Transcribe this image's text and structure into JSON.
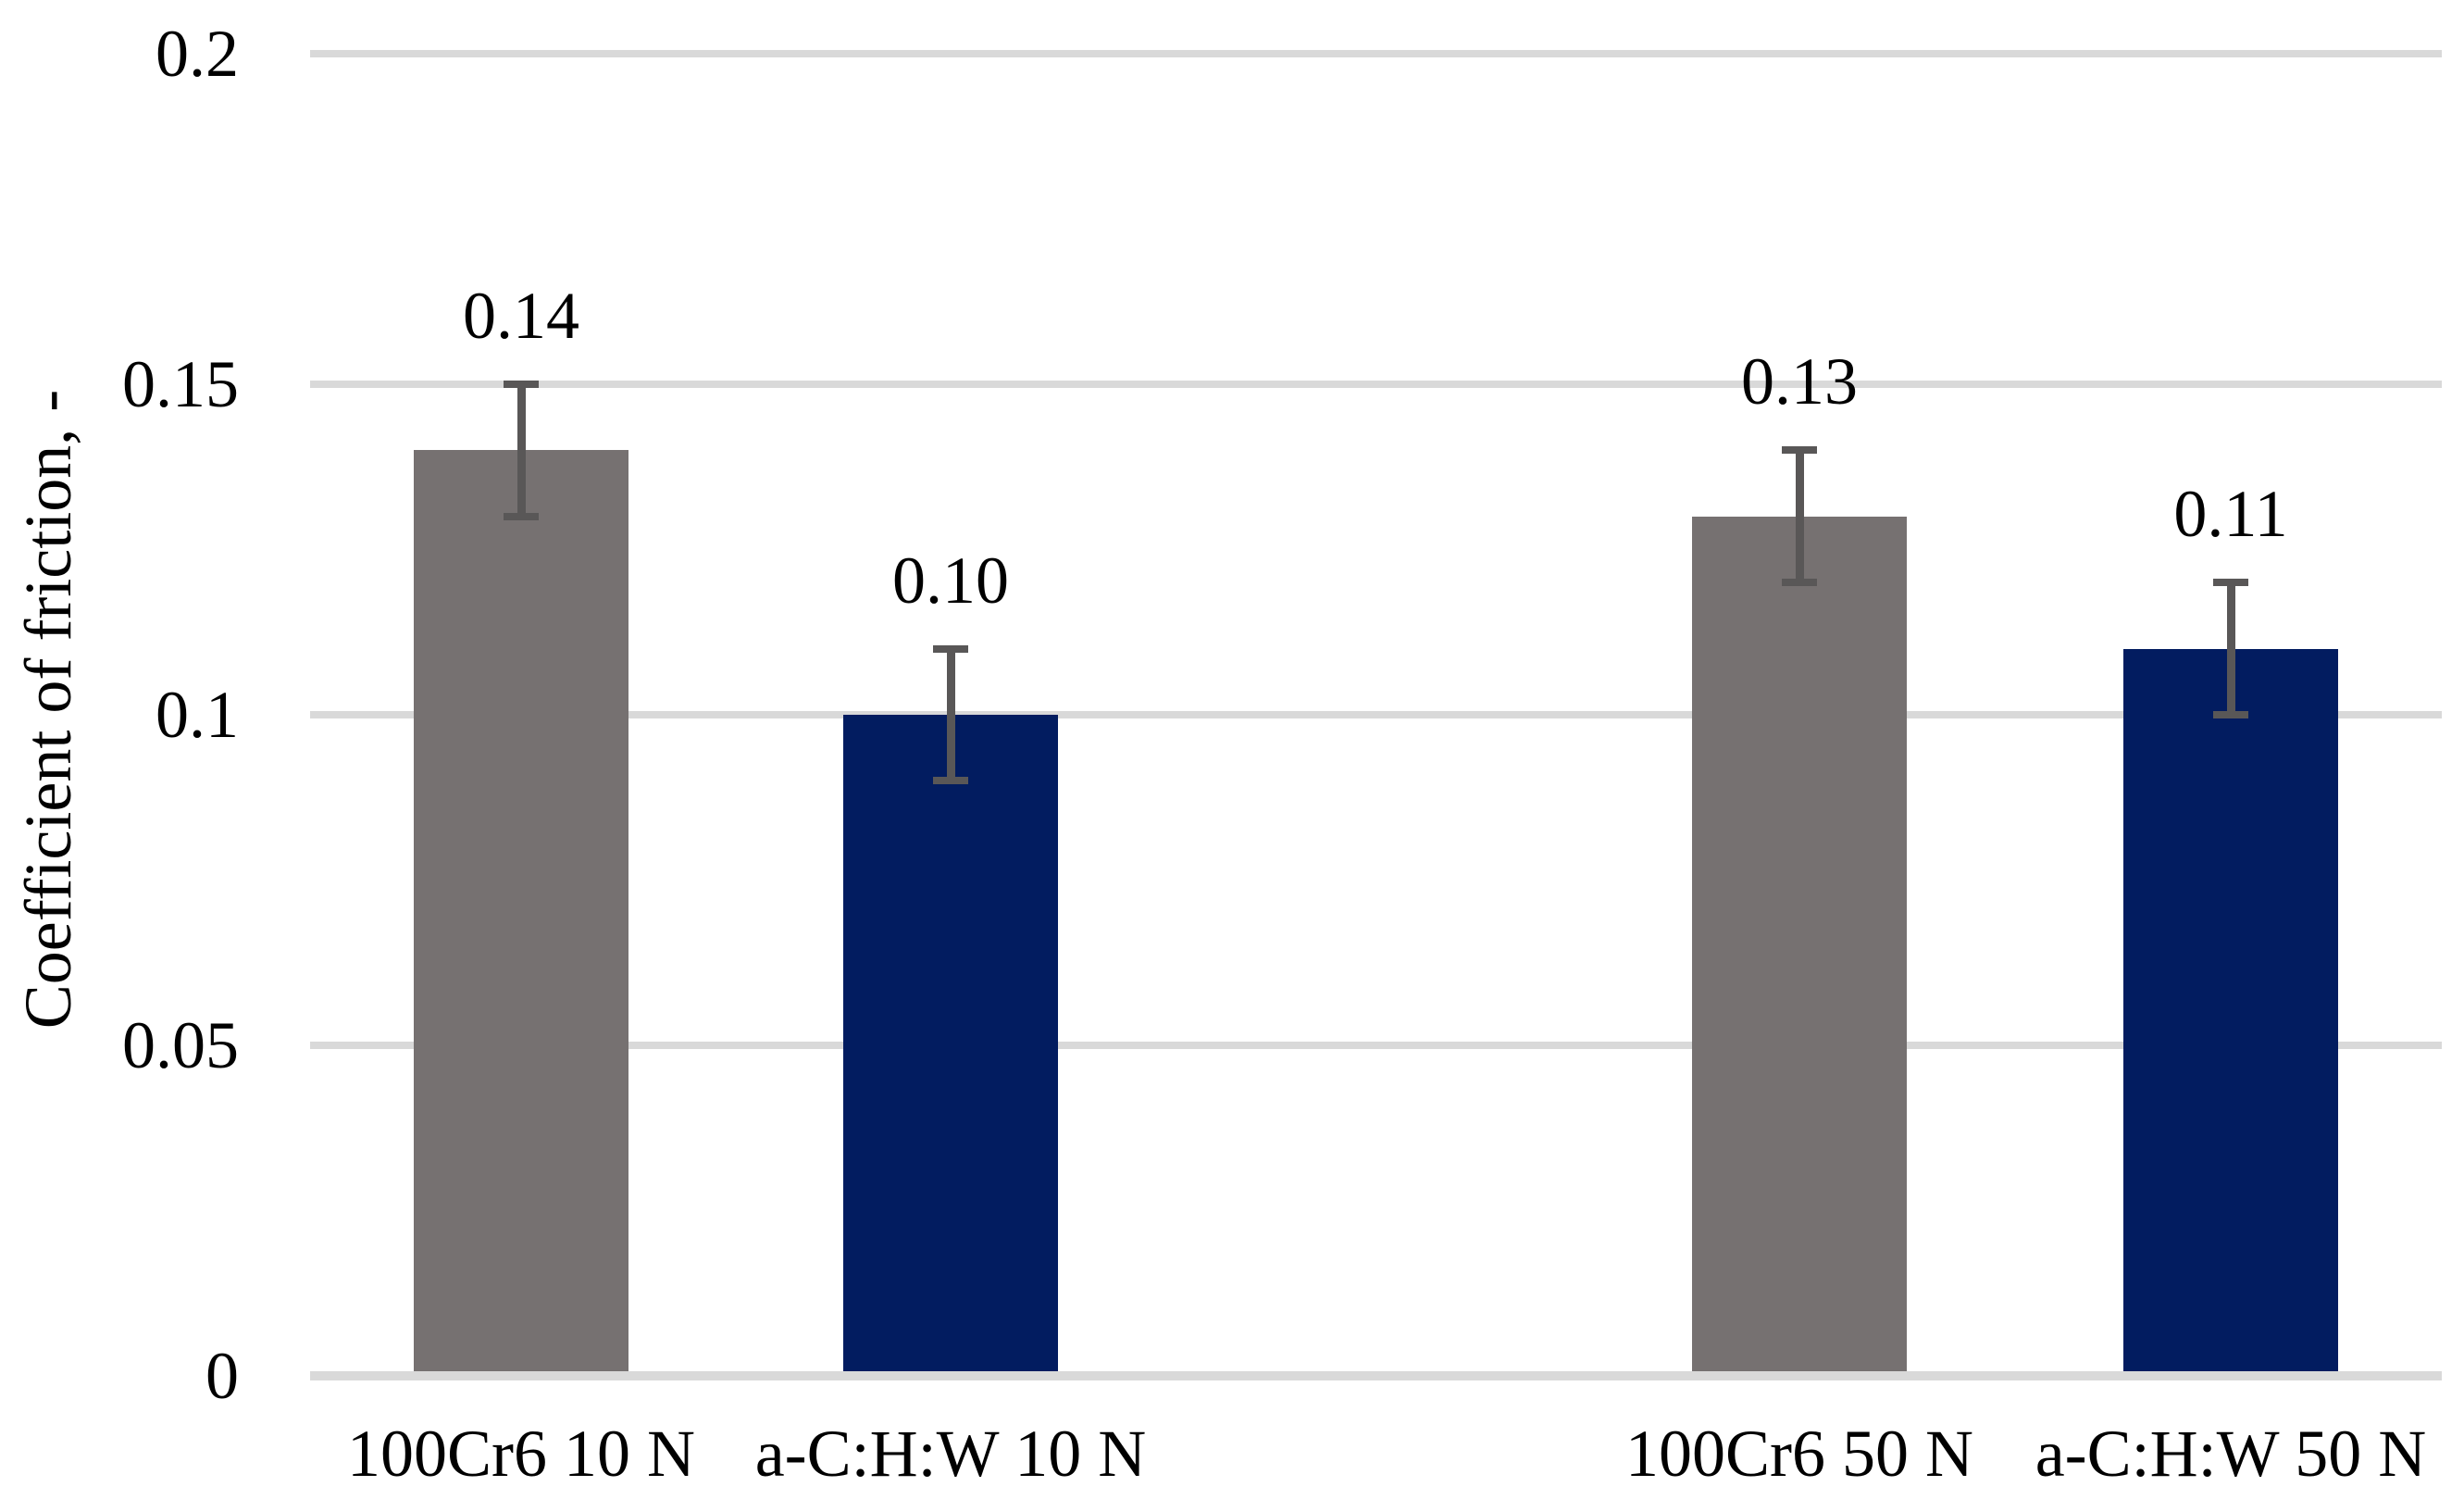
{
  "chart_data": {
    "type": "bar",
    "title": "",
    "xlabel": "",
    "ylabel": "Coefficient of friction, -",
    "ylim": [
      0,
      0.2
    ],
    "grid": "horizontal",
    "legend": "none",
    "background": "#ffffff",
    "yticks": [
      {
        "value": 0,
        "label": "0"
      },
      {
        "value": 0.05,
        "label": "0.05"
      },
      {
        "value": 0.1,
        "label": "0.1"
      },
      {
        "value": 0.15,
        "label": "0.15"
      },
      {
        "value": 0.2,
        "label": "0.2"
      }
    ],
    "categories": [
      "100Cr6 10 N",
      "a-C:H:W 10 N",
      "100Cr6 50 N",
      "a-C:H:W 50 N"
    ],
    "values": [
      0.14,
      0.1,
      0.13,
      0.11
    ],
    "value_labels": [
      "0.14",
      "0.10",
      "0.13",
      "0.11"
    ],
    "error_bars": [
      0.01,
      0.01,
      0.01,
      0.01
    ],
    "bar_colors": [
      "#767171",
      "#021c60",
      "#767171",
      "#021c60"
    ],
    "colors": {
      "gray_bar": "#767171",
      "navy_bar": "#021c60",
      "error_bar": "#595757",
      "gridline": "#d9d9d9",
      "text": "#000000"
    }
  }
}
